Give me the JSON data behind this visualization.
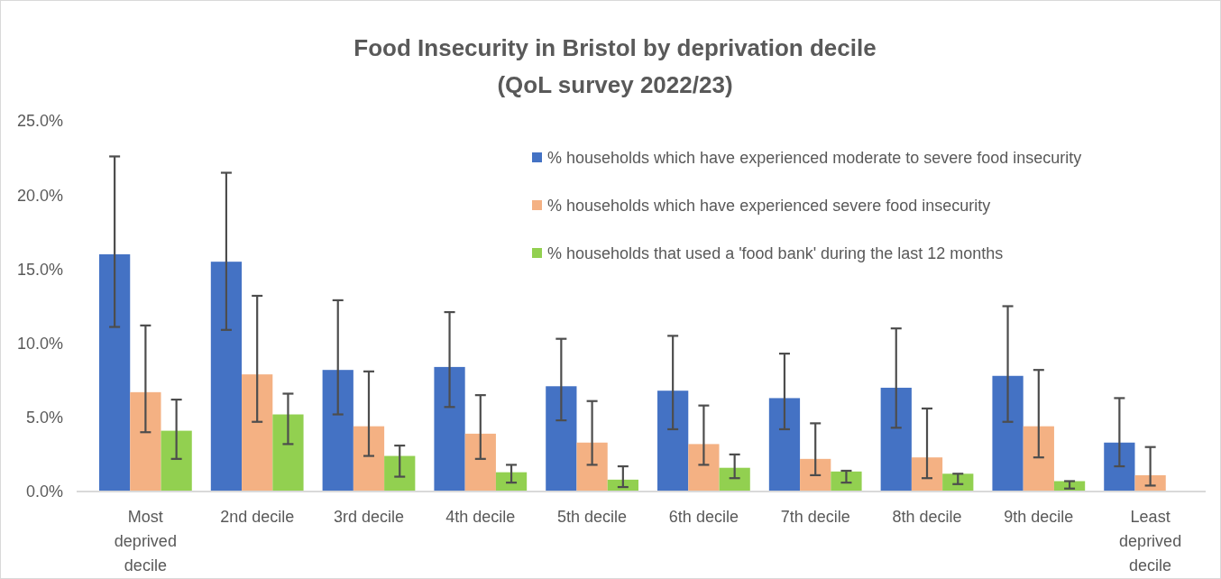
{
  "chart_data": {
    "type": "bar",
    "title": "Food Insecurity in Bristol by deprivation decile",
    "subtitle": "(QoL survey 2022/23)",
    "categories": [
      "Most deprived decile",
      "2nd decile",
      "3rd decile",
      "4th decile",
      "5th decile",
      "6th decile",
      "7th decile",
      "8th decile",
      "9th decile",
      "Least deprived decile"
    ],
    "series": [
      {
        "name": "% households which have experienced moderate to severe food insecurity",
        "color": "#4472c4",
        "values": [
          16.0,
          15.5,
          8.2,
          8.4,
          7.1,
          6.8,
          6.3,
          7.0,
          7.8,
          3.3
        ],
        "errors": [
          [
            11.1,
            22.6
          ],
          [
            10.9,
            21.5
          ],
          [
            5.2,
            12.9
          ],
          [
            5.7,
            12.1
          ],
          [
            4.8,
            10.3
          ],
          [
            4.2,
            10.5
          ],
          [
            4.2,
            9.3
          ],
          [
            4.3,
            11.0
          ],
          [
            4.7,
            12.5
          ],
          [
            1.7,
            6.3
          ]
        ]
      },
      {
        "name": "% households which have experienced severe food insecurity",
        "color": "#f4b183",
        "values": [
          6.7,
          7.9,
          4.4,
          3.9,
          3.3,
          3.2,
          2.2,
          2.3,
          4.4,
          1.1
        ],
        "errors": [
          [
            4.0,
            11.2
          ],
          [
            4.7,
            13.2
          ],
          [
            2.4,
            8.1
          ],
          [
            2.2,
            6.5
          ],
          [
            1.8,
            6.1
          ],
          [
            1.8,
            5.8
          ],
          [
            1.1,
            4.6
          ],
          [
            0.9,
            5.6
          ],
          [
            2.3,
            8.2
          ],
          [
            0.4,
            3.0
          ]
        ]
      },
      {
        "name": "% households that used a 'food bank' during the last 12 months",
        "color": "#92d050",
        "values": [
          4.1,
          5.2,
          2.4,
          1.3,
          0.8,
          1.6,
          1.35,
          1.2,
          0.7,
          null
        ],
        "errors": [
          [
            2.2,
            6.2
          ],
          [
            3.2,
            6.6
          ],
          [
            1.0,
            3.1
          ],
          [
            0.6,
            1.8
          ],
          [
            0.3,
            1.7
          ],
          [
            0.9,
            2.5
          ],
          [
            0.6,
            1.4
          ],
          [
            0.5,
            1.2
          ],
          [
            0.2,
            0.7
          ],
          null
        ]
      }
    ],
    "ylim": [
      0,
      25
    ],
    "yticks": [
      {
        "value": 0,
        "label": "0.0%"
      },
      {
        "value": 5,
        "label": "5.0%"
      },
      {
        "value": 10,
        "label": "10.0%"
      },
      {
        "value": 15,
        "label": "15.0%"
      },
      {
        "value": 20,
        "label": "20.0%"
      },
      {
        "value": 25,
        "label": "25.0%"
      }
    ],
    "grid": false,
    "legend": "top right"
  }
}
